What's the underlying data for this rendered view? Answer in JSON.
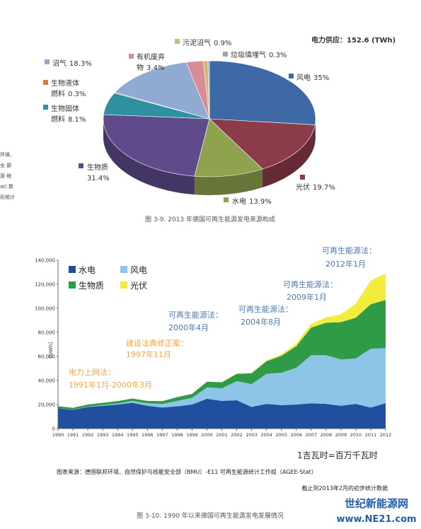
{
  "chart_data": [
    {
      "type": "pie",
      "header": "电力供应：152.6 (TWh)",
      "categories": [
        "风电",
        "光伏",
        "水电",
        "生物质",
        "生物固体燃料",
        "生物液体燃料",
        "沼气",
        "有机废弃物",
        "污泥沼气",
        "垃圾填埋气"
      ],
      "values": [
        35,
        19.7,
        13.9,
        31.4,
        8.1,
        0.3,
        18.3,
        3.4,
        0.9,
        0.3
      ],
      "value_labels": [
        "35%",
        "19.7%",
        "13.9%",
        "31.4%",
        "8.1%",
        "0.3%",
        "18.3%",
        "3.4%",
        "0.9%",
        "0.3%"
      ],
      "colors": [
        "#3d6aa6",
        "#8c3b4b",
        "#8fa24e",
        "#5f4b8b",
        "#2f90a2",
        "#d27c48",
        "#91aad1",
        "#d98c96",
        "#c9bb76",
        "#9fa4aa"
      ],
      "caption": "图 3-9. 2013 年德国可再生能源发电来源构成"
    },
    {
      "type": "area",
      "y_label": "[GWh]",
      "x": [
        1990,
        1991,
        1992,
        1993,
        1994,
        1995,
        1996,
        1997,
        1998,
        1999,
        2000,
        2001,
        2002,
        2003,
        2004,
        2005,
        2006,
        2007,
        2008,
        2009,
        2010,
        2011,
        2012
      ],
      "xlim": [
        1990,
        2012
      ],
      "xticks": [
        1990,
        1991,
        1992,
        1993,
        1994,
        1995,
        1996,
        1997,
        1998,
        1999,
        2000,
        2001,
        2002,
        2003,
        2004,
        2005,
        2006,
        2007,
        2008,
        2009,
        2010,
        2011,
        2012
      ],
      "ylim": [
        0,
        140000
      ],
      "yticks": [
        0,
        {
          "value": 20000,
          "label": "20,000"
        },
        {
          "value": 40000,
          "label": "40,000"
        },
        {
          "value": 60000,
          "label": "60,000"
        },
        {
          "value": 80000,
          "label": "80,000"
        },
        {
          "value": 100000,
          "label": "100,000"
        },
        {
          "value": 120000,
          "label": "120,000"
        },
        {
          "value": 140000,
          "label": "140,000"
        }
      ],
      "stacked": true,
      "series": [
        {
          "name": "水电",
          "color": "#1f4f9e",
          "values": [
            17000,
            15500,
            18000,
            19000,
            20000,
            21500,
            19000,
            17500,
            18500,
            20000,
            24800,
            23000,
            23500,
            18000,
            20500,
            19500,
            20000,
            21000,
            20500,
            19000,
            20500,
            17500,
            21000
          ]
        },
        {
          "name": "风电",
          "color": "#8fc4e9",
          "values": [
            70,
            250,
            300,
            600,
            900,
            1500,
            2000,
            3000,
            4500,
            5500,
            9500,
            10500,
            16000,
            19000,
            25000,
            27000,
            30500,
            40000,
            40500,
            38500,
            37800,
            48900,
            46000
          ]
        },
        {
          "name": "生物质",
          "color": "#2f9b47",
          "values": [
            1500,
            1500,
            1700,
            1800,
            2000,
            2000,
            2000,
            2300,
            3200,
            3300,
            4700,
            5000,
            6000,
            9000,
            10500,
            14000,
            18000,
            23000,
            27000,
            31000,
            34000,
            37000,
            40000
          ]
        },
        {
          "name": "光伏",
          "color": "#f2ec3c",
          "values": [
            1,
            2,
            3,
            6,
            8,
            11,
            16,
            26,
            32,
            42,
            60,
            100,
            200,
            300,
            600,
            1300,
            2200,
            3100,
            4400,
            6600,
            11700,
            19600,
            22000
          ]
        }
      ],
      "annotations": [
        {
          "lines": [
            "可再生能源法：",
            "2012年1月"
          ],
          "color": "#4a78b0"
        },
        {
          "lines": [
            "可再生能源法：",
            "2009年1月"
          ],
          "color": "#4a78b0"
        },
        {
          "lines": [
            "可再生能源法：",
            "2004年8月"
          ],
          "color": "#4a78b0"
        },
        {
          "lines": [
            "可再生能源法：",
            "2000年4月"
          ],
          "color": "#4a78b0"
        },
        {
          "lines": [
            "建设法典修正案：",
            "1997年11月"
          ],
          "color": "#f2a744"
        },
        {
          "lines": [
            "电力上网法：",
            "1991年1月-2000年3月"
          ],
          "color": "#f2a744"
        }
      ],
      "unit_note": "1吉瓦时=百万千瓦时",
      "source": "图表来源：德国联邦环境、自然保护与核能安全部（BMU）-E11 可再生能源统计工作组（AGEE-Stat）",
      "data_note": "截止到2013年2月的初步统计数据",
      "caption": "图 3-10. 1990 年以来德国可再生能源发电发展情况"
    }
  ],
  "page": {
    "side_text": [
      "环境、",
      "全 部",
      "源 统",
      "at) 数",
      "形统计"
    ],
    "watermark": [
      "世纪新能源网",
      "www.NE21.com"
    ]
  }
}
